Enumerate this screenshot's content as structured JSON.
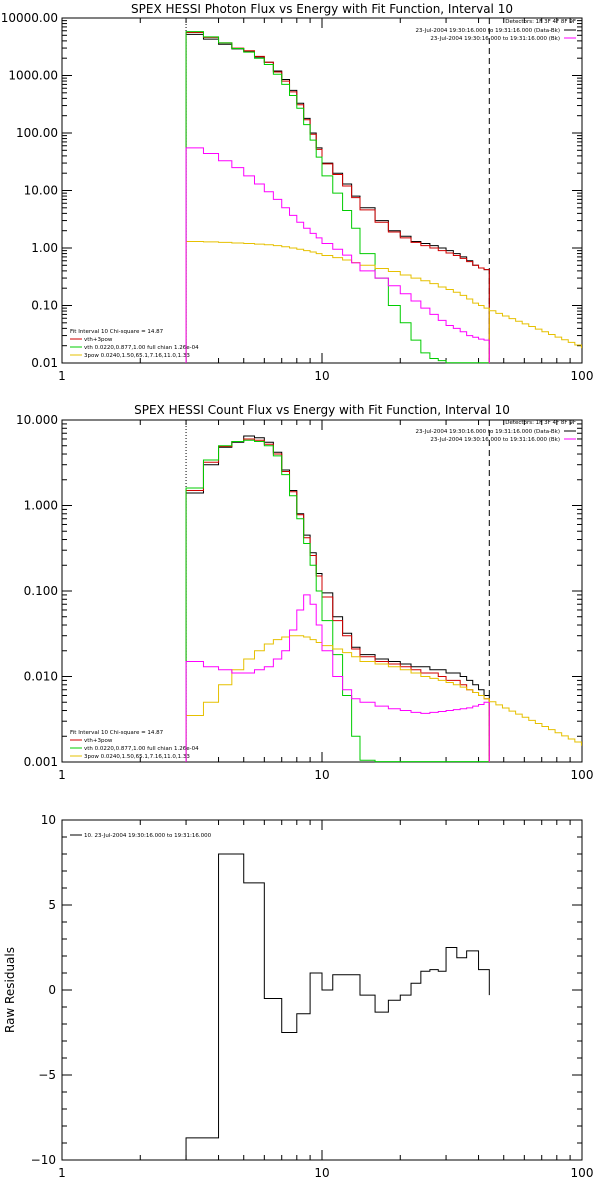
{
  "colors": {
    "data": "#000000",
    "total": "#d00000",
    "thermal": "#00cc00",
    "powerlaw": "#e6c000",
    "background": "#ff00ff",
    "axis": "#000000"
  },
  "chart_data": [
    {
      "type": "line",
      "title": "SPEX HESSI Photon Flux vs Energy with Fit Function, Interval 10",
      "xlabel": "",
      "ylabel": "",
      "xscale": "log",
      "yscale": "log",
      "xlim": [
        1,
        100
      ],
      "ylim": [
        0.01,
        10000
      ],
      "xticks": [
        "1",
        "10",
        "100"
      ],
      "yticks": [
        "10000.00",
        "1000.00",
        "100.00",
        "10.00",
        "1.00",
        "0.10",
        "0.01"
      ],
      "detectors": "Detectors: 1F 3F 4F 8F 9F",
      "legend_right": [
        "23-Jul-2004 19:30:16.000 to 19:31:16.000 (Data-Bk)",
        "23-Jul-2004 19:30:16.000 to 19:31:16.000 (Bk)"
      ],
      "fit_header": "Fit Interval 10    Chi-square = 14.87",
      "legend_left": [
        "vth+3pow",
        "vth 0.0220,0.877,1.00  full chian 1.26e-04",
        "3pow 0.0240,1.50,65.1,7.16,11.0,1.33"
      ],
      "vlines": [
        3.0,
        44.0
      ],
      "edges": [
        3.0,
        3.5,
        4.0,
        4.5,
        5.0,
        5.5,
        6.0,
        6.5,
        7.0,
        7.5,
        8.0,
        8.5,
        9.0,
        9.5,
        10.0,
        11.0,
        12.0,
        13.0,
        14.0,
        16.0,
        18.0,
        20.0,
        22.0,
        24.0,
        26.0,
        28.0,
        30.0,
        32.0,
        34.0,
        36.0,
        38.0,
        40.0,
        42.0,
        44.0
      ],
      "series": [
        {
          "name": "Data-Bk",
          "color": "#000000",
          "values": [
            5200,
            4300,
            3500,
            2900,
            2600,
            2100,
            1700,
            1200,
            850,
            550,
            330,
            180,
            100,
            55,
            30,
            20,
            13,
            8,
            5,
            3,
            2,
            1.6,
            1.3,
            1.2,
            1.1,
            1.0,
            0.9,
            0.8,
            0.7,
            0.6,
            0.5,
            0.45,
            0.42
          ]
        },
        {
          "name": "vth+3pow",
          "color": "#d00000",
          "values": [
            5600,
            4600,
            3700,
            3000,
            2700,
            2150,
            1700,
            1150,
            800,
            520,
            310,
            170,
            95,
            52,
            29,
            19,
            12,
            7.5,
            4.6,
            2.8,
            1.9,
            1.5,
            1.25,
            1.1,
            1.0,
            0.9,
            0.82,
            0.74,
            0.66,
            0.58,
            0.5,
            0.45,
            0.42
          ]
        },
        {
          "name": "vth",
          "color": "#00cc00",
          "values": [
            5800,
            4700,
            3700,
            2950,
            2550,
            2000,
            1550,
            1050,
            700,
            450,
            270,
            140,
            75,
            38,
            18,
            9,
            4.5,
            2.2,
            0.8,
            0.3,
            0.1,
            0.05,
            0.025,
            0.015,
            0.012,
            0.011,
            0.0101,
            0.0101,
            0.0101,
            0.0101,
            0.0101,
            0.0101,
            0.0101
          ]
        },
        {
          "name": "3pow",
          "color": "#e6c000",
          "values": [
            1.3,
            1.28,
            1.25,
            1.22,
            1.2,
            1.17,
            1.14,
            1.1,
            1.05,
            1.0,
            0.95,
            0.9,
            0.85,
            0.8,
            0.74,
            0.68,
            0.62,
            0.56,
            0.5,
            0.44,
            0.39,
            0.34,
            0.3,
            0.27,
            0.24,
            0.21,
            0.19,
            0.17,
            0.15,
            0.13,
            0.11,
            0.1,
            0.09
          ]
        },
        {
          "name": "Bk",
          "color": "#ff00ff",
          "values": [
            55,
            44,
            33,
            25,
            18,
            13,
            9.5,
            7,
            5,
            3.7,
            2.8,
            2.2,
            1.8,
            1.5,
            1.2,
            0.95,
            0.75,
            0.55,
            0.4,
            0.3,
            0.22,
            0.16,
            0.12,
            0.09,
            0.07,
            0.055,
            0.045,
            0.04,
            0.035,
            0.03,
            0.028,
            0.026,
            0.025
          ]
        }
      ]
    },
    {
      "type": "line",
      "title": "SPEX HESSI Count Flux vs Energy with Fit Function, Interval 10",
      "xlabel": "",
      "ylabel": "",
      "xscale": "log",
      "yscale": "log",
      "xlim": [
        1,
        100
      ],
      "ylim": [
        0.001,
        10
      ],
      "xticks": [
        "1",
        "10",
        "100"
      ],
      "yticks": [
        "10.000",
        "1.000",
        "0.100",
        "0.010",
        "0.001"
      ],
      "detectors": "Detectors: 1F 3F 4F 8F 9F",
      "legend_right": [
        "23-Jul-2004 19:30:16.000 to 19:31:16.000 (Data-Bk)",
        "23-Jul-2004 19:30:16.000 to 19:31:16.000 (Bk)"
      ],
      "fit_header": "Fit Interval 10    Chi-square = 14.87",
      "legend_left": [
        "vth+3pow",
        "vth 0.0220,0.877,1.00  full chian 1.26e-04",
        "3pow 0.0240,1.50,65.1,7.16,11.0,1.33"
      ],
      "vlines": [
        3.0,
        44.0
      ],
      "edges": [
        3.0,
        3.5,
        4.0,
        4.5,
        5.0,
        5.5,
        6.0,
        6.5,
        7.0,
        7.5,
        8.0,
        8.5,
        9.0,
        9.5,
        10.0,
        11.0,
        12.0,
        13.0,
        14.0,
        16.0,
        18.0,
        20.0,
        22.0,
        24.0,
        26.0,
        28.0,
        30.0,
        32.0,
        34.0,
        36.0,
        38.0,
        40.0,
        42.0,
        44.0
      ],
      "series": [
        {
          "name": "Data-Bk",
          "color": "#000000",
          "values": [
            1.4,
            3.0,
            4.8,
            5.5,
            6.5,
            6.2,
            5.5,
            4.2,
            2.6,
            1.5,
            0.8,
            0.45,
            0.28,
            0.16,
            0.095,
            0.05,
            0.032,
            0.022,
            0.018,
            0.016,
            0.015,
            0.014,
            0.013,
            0.013,
            0.012,
            0.012,
            0.011,
            0.011,
            0.01,
            0.009,
            0.008,
            0.007,
            0.006
          ]
        },
        {
          "name": "vth+3pow",
          "color": "#d00000",
          "values": [
            1.5,
            3.2,
            4.9,
            5.6,
            6.0,
            5.8,
            5.2,
            4.0,
            2.5,
            1.45,
            0.78,
            0.42,
            0.26,
            0.15,
            0.085,
            0.045,
            0.03,
            0.021,
            0.017,
            0.015,
            0.014,
            0.013,
            0.012,
            0.011,
            0.011,
            0.01,
            0.009,
            0.009,
            0.008,
            0.007,
            0.0065,
            0.006,
            0.0055
          ]
        },
        {
          "name": "vth",
          "color": "#00cc00",
          "values": [
            1.6,
            3.4,
            5.0,
            5.6,
            5.8,
            5.6,
            5.0,
            3.8,
            2.3,
            1.3,
            0.7,
            0.36,
            0.2,
            0.1,
            0.045,
            0.018,
            0.006,
            0.002,
            0.00105,
            0.00101,
            0.00101,
            0.00101,
            0.00101,
            0.00101,
            0.00101,
            0.00101,
            0.00101,
            0.00101,
            0.00101,
            0.00101,
            0.00101,
            0.00101,
            0.00101
          ]
        },
        {
          "name": "3pow",
          "color": "#e6c000",
          "values": [
            0.0035,
            0.005,
            0.008,
            0.012,
            0.016,
            0.02,
            0.024,
            0.027,
            0.029,
            0.03,
            0.03,
            0.029,
            0.027,
            0.025,
            0.023,
            0.021,
            0.019,
            0.017,
            0.015,
            0.014,
            0.013,
            0.012,
            0.011,
            0.01,
            0.0095,
            0.009,
            0.0085,
            0.008,
            0.0075,
            0.007,
            0.0065,
            0.006,
            0.0055
          ]
        },
        {
          "name": "Bk",
          "color": "#ff00ff",
          "values": [
            0.015,
            0.013,
            0.012,
            0.011,
            0.011,
            0.012,
            0.013,
            0.016,
            0.02,
            0.035,
            0.06,
            0.09,
            0.07,
            0.04,
            0.02,
            0.01,
            0.007,
            0.0055,
            0.005,
            0.0045,
            0.0042,
            0.004,
            0.0038,
            0.0037,
            0.0038,
            0.0039,
            0.004,
            0.0041,
            0.0042,
            0.0043,
            0.0045,
            0.0047,
            0.005
          ]
        }
      ]
    },
    {
      "type": "line",
      "title": "",
      "xlabel": "",
      "ylabel": "Raw Residuals",
      "xscale": "log",
      "yscale": "linear",
      "xlim": [
        1,
        100
      ],
      "ylim": [
        -10,
        10
      ],
      "xticks": [
        "1",
        "10",
        "100"
      ],
      "yticks": [
        "10",
        "5",
        "0",
        "−5",
        "−10"
      ],
      "legend_left": [
        "10. 23-Jul-2004 19:30:16.000 to 19:31:16.000"
      ],
      "edges": [
        3.0,
        4.0,
        5.0,
        6.0,
        7.0,
        8.0,
        9.0,
        10.0,
        11.0,
        12.0,
        14.0,
        16.0,
        18.0,
        20.0,
        22.0,
        24.0,
        26.0,
        28.0,
        30.0,
        33.0,
        36.0,
        40.0,
        44.0
      ],
      "series": [
        {
          "name": "",
          "color": "#000000",
          "values": [
            -8.7,
            8.0,
            6.3,
            -0.5,
            -2.5,
            -1.4,
            1.0,
            0.0,
            0.9,
            0.9,
            -0.3,
            -1.3,
            -0.6,
            -0.3,
            0.4,
            1.1,
            1.2,
            1.1,
            2.5,
            1.9,
            2.3,
            1.2,
            -0.3
          ]
        }
      ]
    }
  ]
}
